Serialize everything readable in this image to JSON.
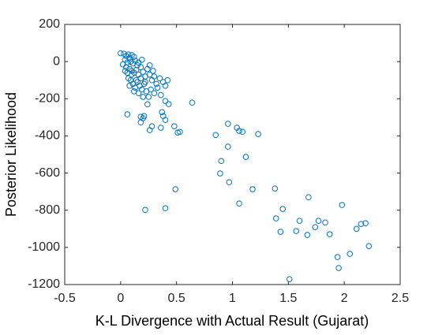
{
  "chart_data": {
    "type": "scatter",
    "xlabel": "K-L Divergence with Actual Result (Gujarat)",
    "ylabel": "Posterior Likelihood",
    "color": "#0072bd",
    "xlim": [
      -0.5,
      2.5
    ],
    "xticks": [
      -0.5,
      0,
      0.5,
      1,
      1.5,
      2,
      2.5
    ],
    "ylim": [
      -1200,
      200
    ],
    "yticks": [
      -1200,
      -1000,
      -800,
      -600,
      -400,
      -200,
      0,
      200
    ],
    "x": [
      0.0,
      0.03,
      0.05,
      0.07,
      0.08,
      0.1,
      0.12,
      0.04,
      0.06,
      0.09,
      0.11,
      0.13,
      0.15,
      0.02,
      0.05,
      0.08,
      0.1,
      0.12,
      0.14,
      0.16,
      0.18,
      0.2,
      0.22,
      0.24,
      0.26,
      0.28,
      0.3,
      0.32,
      0.35,
      0.38,
      0.4,
      0.07,
      0.09,
      0.11,
      0.13,
      0.15,
      0.17,
      0.19,
      0.21,
      0.23,
      0.25,
      0.27,
      0.3,
      0.33,
      0.36,
      0.24,
      0.2,
      0.16,
      0.12,
      0.08,
      0.06,
      0.18,
      0.14,
      0.1,
      0.22,
      0.26,
      0.19,
      0.16,
      0.04,
      0.29,
      0.42,
      0.06,
      0.18,
      0.2,
      0.18,
      0.21,
      0.26,
      0.28,
      0.37,
      0.38,
      0.4,
      0.4,
      0.43,
      0.48,
      0.51,
      0.53,
      0.36,
      0.64,
      0.49,
      0.22,
      0.4,
      0.85,
      0.96,
      1.04,
      1.06,
      1.09,
      1.23,
      0.96,
      0.9,
      1.12,
      0.89,
      0.97,
      1.18,
      1.06,
      1.38,
      1.45,
      1.39,
      1.43,
      1.57,
      1.67,
      1.68,
      1.6,
      1.74,
      1.77,
      1.83,
      1.87,
      1.98,
      2.05,
      2.11,
      2.15,
      2.19,
      2.22,
      1.94,
      1.95,
      1.51
    ],
    "values": [
      45,
      42,
      30,
      38,
      20,
      35,
      25,
      10,
      -5,
      0,
      -10,
      5,
      -20,
      -15,
      -30,
      -40,
      -50,
      -60,
      -45,
      -70,
      -30,
      -55,
      -80,
      -40,
      -70,
      -100,
      -80,
      -120,
      -90,
      -110,
      -130,
      -90,
      -100,
      -120,
      -140,
      -110,
      -130,
      -150,
      -120,
      -160,
      -190,
      -150,
      -170,
      -140,
      -180,
      -230,
      -190,
      -170,
      -160,
      -130,
      -60,
      -90,
      -100,
      -70,
      -110,
      -20,
      10,
      -5,
      -50,
      -50,
      -100,
      -284,
      -297,
      -305,
      -327,
      -293,
      -369,
      -348,
      -272,
      -293,
      -314,
      -212,
      -229,
      -348,
      -382,
      -378,
      -356,
      -221,
      -687,
      -798,
      -789,
      -395,
      -335,
      -356,
      -373,
      -378,
      -390,
      -458,
      -535,
      -513,
      -602,
      -649,
      -687,
      -764,
      -683,
      -793,
      -844,
      -916,
      -912,
      -933,
      -730,
      -857,
      -891,
      -857,
      -866,
      -929,
      -772,
      -1035,
      -900,
      -874,
      -870,
      -993,
      -1052,
      -1111,
      -1171
    ]
  }
}
